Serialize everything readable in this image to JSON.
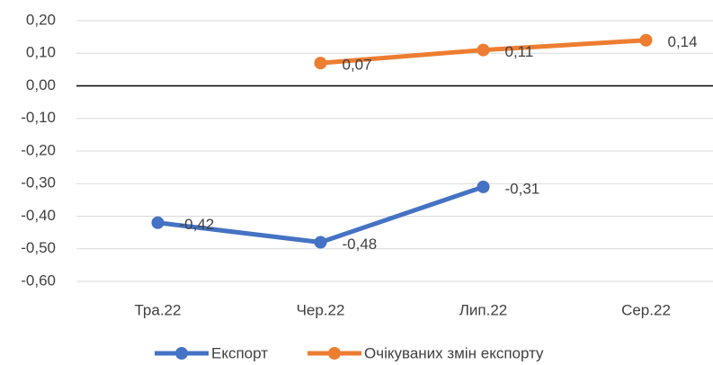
{
  "chart_data": {
    "type": "line",
    "categories": [
      "Тра.22",
      "Чер.22",
      "Лип.22",
      "Сер.22"
    ],
    "series": [
      {
        "name": "Експорт",
        "color": "#4472c4",
        "values": [
          -0.42,
          -0.48,
          -0.31,
          null
        ],
        "value_labels": [
          "-0,42",
          "-0,48",
          "-0,31",
          null
        ]
      },
      {
        "name": "Очікуваних змін експорту",
        "color": "#ed7d31",
        "values": [
          null,
          0.07,
          0.11,
          0.14
        ],
        "value_labels": [
          null,
          "0,07",
          "0,11",
          "0,14"
        ]
      }
    ],
    "ylim": [
      -0.6,
      0.2
    ],
    "yticks": [
      {
        "value": 0.2,
        "label": "0,20"
      },
      {
        "value": 0.1,
        "label": "0,10"
      },
      {
        "value": 0,
        "label": "0,00"
      },
      {
        "value": -0.1,
        "label": "-0,10"
      },
      {
        "value": -0.2,
        "label": "-0,20"
      },
      {
        "value": -0.3,
        "label": "-0,30"
      },
      {
        "value": -0.4,
        "label": "-0,40"
      },
      {
        "value": -0.5,
        "label": "-0,50"
      },
      {
        "value": -0.6,
        "label": "-0,60"
      }
    ],
    "grid": true,
    "legend": "bottom"
  }
}
